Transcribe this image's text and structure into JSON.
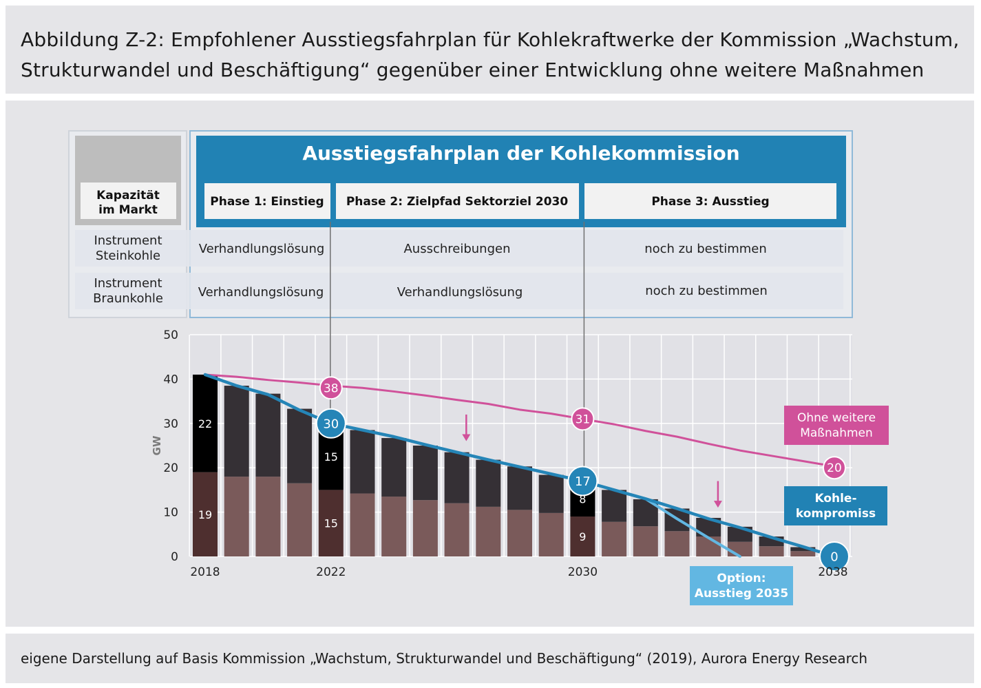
{
  "title": "Abbildung Z-2: Empfohlener Ausstiegsfahrplan für Kohlekraftwerke der Kommission „Wachstum, Strukturwandel und Beschäftigung“ gegenüber einer Entwicklung ohne weitere Maßnahmen",
  "title_lines": [
    "Abbildung Z-2: Empfohlener Ausstiegsfahrplan für Kohlekraftwerke der Kommission „Wachstum,",
    "Strukturwandel und Beschäftigung“ gegenüber einer Entwicklung ohne weitere Maßnahmen"
  ],
  "footer": "eigene Darstellung auf Basis Kommission „Wachstum, Strukturwandel und Beschäftigung“ (2019), Aurora Energy Research",
  "colors": {
    "steinkohle": "#353035",
    "braunkohle": "#7a5a5a",
    "highlight_stein": "#000000",
    "highlight_braun": "#4e2f2f",
    "kohlekompromiss": "#2585b7",
    "ohne_massnahmen": "#d0519a",
    "option_2035": "#62b7e2",
    "grid": "#ffffff"
  },
  "roadmap": {
    "header": "Ausstiegsfahrplan  der Kohlekommission",
    "row_header": "Kapazität im Markt",
    "row_header_lines": [
      "Kapazität",
      "im Markt"
    ],
    "phases": [
      "Phase 1: Einstieg",
      "Phase 2: Zielpfad Sektorziel 2030",
      "Phase 3: Ausstieg"
    ],
    "rows": [
      {
        "label": "Instrument Steinkohle",
        "label_lines": [
          "Instrument",
          "Steinkohle"
        ],
        "cells": [
          "Verhandlungslösung",
          "Ausschreibungen",
          "noch zu bestimmen"
        ]
      },
      {
        "label": "Instrument Braunkohle",
        "label_lines": [
          "Instrument",
          "Braunkohle"
        ],
        "cells": [
          "Verhandlungslösung",
          "Verhandlungslösung",
          "noch zu bestimmen"
        ]
      }
    ]
  },
  "chart_data": {
    "type": "bar",
    "stacked": true,
    "ylabel": "GW",
    "ylim": [
      0,
      50
    ],
    "yticks": [
      "0",
      "10",
      "20",
      "30",
      "40",
      "50"
    ],
    "x": [
      2018,
      2019,
      2020,
      2021,
      2022,
      2023,
      2024,
      2025,
      2026,
      2027,
      2028,
      2029,
      2030,
      2031,
      2032,
      2033,
      2034,
      2035,
      2036,
      2037,
      2038
    ],
    "xtick_labels": [
      "2018",
      "2022",
      "2030",
      "2038"
    ],
    "series": [
      {
        "key": "braunkohle",
        "values": [
          19,
          18,
          18,
          16.5,
          15,
          14.2,
          13.5,
          12.7,
          12,
          11.2,
          10.5,
          9.8,
          9,
          7.8,
          6.8,
          5.7,
          4.5,
          3.3,
          2.3,
          1.2,
          0
        ]
      },
      {
        "key": "steinkohle",
        "values": [
          22,
          20.5,
          18.7,
          16.8,
          15,
          14.3,
          13.2,
          12.3,
          11.5,
          10.6,
          9.8,
          8.6,
          8,
          7.2,
          6.1,
          5.1,
          4.2,
          3.4,
          2.2,
          0.9,
          0
        ]
      }
    ],
    "bar_labels": [
      {
        "year": 2018,
        "series": "steinkohle",
        "text": "22"
      },
      {
        "year": 2018,
        "series": "braunkohle",
        "text": "19"
      },
      {
        "year": 2022,
        "series": "steinkohle",
        "text": "15"
      },
      {
        "year": 2022,
        "series": "braunkohle",
        "text": "15"
      },
      {
        "year": 2030,
        "series": "steinkohle",
        "text": "8"
      },
      {
        "year": 2030,
        "series": "braunkohle",
        "text": "9"
      }
    ],
    "lines": [
      {
        "key": "ohne_massnahmen",
        "name": "Ohne weitere Maßnahmen",
        "name_lines": [
          "Ohne weitere",
          "Maßnahmen"
        ],
        "x": [
          2018,
          2019,
          2020,
          2021,
          2022,
          2023,
          2024,
          2025,
          2026,
          2027,
          2028,
          2029,
          2030,
          2031,
          2032,
          2033,
          2034,
          2035,
          2036,
          2037,
          2038
        ],
        "y": [
          41,
          40.5,
          39.8,
          39.2,
          38.5,
          38,
          37.2,
          36.3,
          35.3,
          34.4,
          33.1,
          32.2,
          31,
          29.8,
          28.3,
          27,
          25.4,
          23.9,
          22.7,
          21.5,
          20.3
        ]
      },
      {
        "key": "kohlekompromiss",
        "name": "Kohlekompromiss",
        "name_lines": [
          "Kohle-",
          "kompromiss"
        ],
        "x": [
          2018,
          2019,
          2020,
          2021,
          2022,
          2023,
          2024,
          2025,
          2026,
          2027,
          2028,
          2029,
          2030,
          2031,
          2032,
          2033,
          2034,
          2035,
          2036,
          2037,
          2038
        ],
        "y": [
          41,
          38.5,
          36.5,
          33,
          30,
          28.5,
          27,
          25.2,
          23.5,
          21.8,
          20.2,
          18.6,
          17,
          15,
          13,
          10.8,
          8.5,
          6.5,
          4.3,
          2.2,
          0
        ]
      },
      {
        "key": "option_2035",
        "name": "Option: Ausstieg 2035",
        "name_lines": [
          "Option:",
          "Ausstieg 2035"
        ],
        "x": [
          2032,
          2033,
          2034,
          2035
        ],
        "y": [
          13,
          8.5,
          4.2,
          0
        ]
      }
    ],
    "markers": [
      {
        "series": "ohne_massnahmen",
        "year": 2022,
        "value": 38,
        "text": "38"
      },
      {
        "series": "ohne_massnahmen",
        "year": 2030,
        "value": 31,
        "text": "31"
      },
      {
        "series": "ohne_massnahmen",
        "year": 2038,
        "value": 20,
        "text": "20"
      },
      {
        "series": "kohlekompromiss",
        "year": 2022,
        "value": 30,
        "text": "30"
      },
      {
        "series": "kohlekompromiss",
        "year": 2030,
        "value": 17,
        "text": "17"
      },
      {
        "series": "kohlekompromiss",
        "year": 2038,
        "value": 0,
        "text": "0"
      }
    ],
    "arrows": [
      {
        "year": 2026.3,
        "from": 32,
        "to": 26
      },
      {
        "year": 2034.3,
        "from": 17,
        "to": 11
      }
    ],
    "phase_dividers": [
      2022,
      2030
    ]
  }
}
